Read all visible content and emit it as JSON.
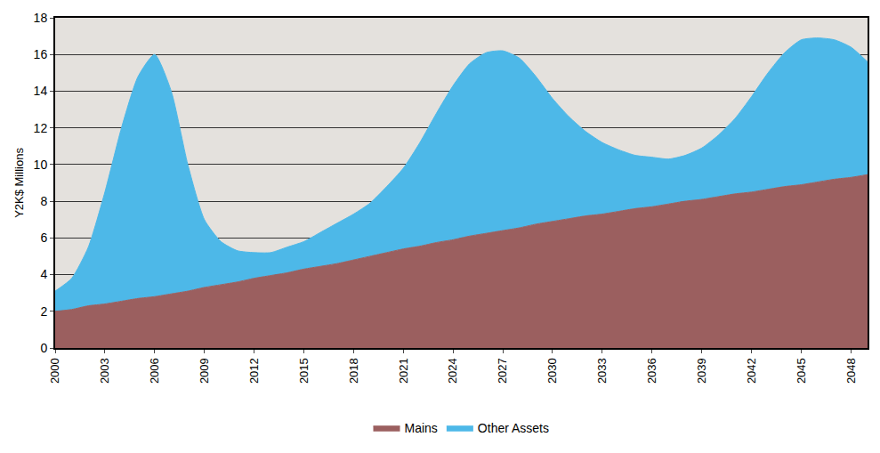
{
  "chart_data": {
    "type": "area",
    "stacked": true,
    "y_label": "Y2K$ Millions",
    "x": [
      2000,
      2001,
      2002,
      2003,
      2004,
      2005,
      2006,
      2007,
      2008,
      2009,
      2010,
      2011,
      2012,
      2013,
      2014,
      2015,
      2016,
      2017,
      2018,
      2019,
      2020,
      2021,
      2022,
      2023,
      2024,
      2025,
      2026,
      2027,
      2028,
      2029,
      2030,
      2031,
      2032,
      2033,
      2034,
      2035,
      2036,
      2037,
      2038,
      2039,
      2040,
      2041,
      2042,
      2043,
      2044,
      2045,
      2046,
      2047,
      2048,
      2049
    ],
    "series": [
      {
        "name": "Mains",
        "color": "#9b5f5f",
        "values": [
          2.0,
          2.1,
          2.3,
          2.4,
          2.55,
          2.7,
          2.8,
          2.95,
          3.1,
          3.3,
          3.45,
          3.6,
          3.8,
          3.95,
          4.1,
          4.3,
          4.45,
          4.6,
          4.8,
          5.0,
          5.2,
          5.4,
          5.55,
          5.75,
          5.9,
          6.1,
          6.25,
          6.4,
          6.55,
          6.75,
          6.9,
          7.05,
          7.2,
          7.3,
          7.45,
          7.6,
          7.7,
          7.85,
          8.0,
          8.1,
          8.25,
          8.4,
          8.5,
          8.65,
          8.8,
          8.9,
          9.05,
          9.2,
          9.3,
          9.45
        ]
      },
      {
        "name": "Other Assets",
        "color": "#4db8e8",
        "values": [
          1.1,
          1.7,
          3.2,
          6.1,
          9.45,
          12.1,
          13.2,
          11.05,
          6.9,
          3.7,
          2.35,
          1.7,
          1.4,
          1.25,
          1.4,
          1.5,
          1.85,
          2.2,
          2.5,
          2.9,
          3.6,
          4.4,
          5.65,
          7.05,
          8.4,
          9.4,
          9.85,
          9.8,
          9.25,
          8.05,
          6.7,
          5.55,
          4.6,
          3.9,
          3.35,
          2.9,
          2.7,
          2.45,
          2.5,
          2.8,
          3.35,
          4.1,
          5.2,
          6.35,
          7.3,
          7.9,
          7.85,
          7.6,
          7.1,
          6.15
        ]
      }
    ],
    "xlim": [
      2000,
      2049
    ],
    "xticks": [
      2000,
      2003,
      2006,
      2009,
      2012,
      2015,
      2018,
      2021,
      2024,
      2027,
      2030,
      2033,
      2036,
      2039,
      2042,
      2045,
      2048
    ],
    "ylim": [
      0,
      18
    ],
    "yticks": [
      0,
      2,
      4,
      6,
      8,
      10,
      12,
      14,
      16,
      18
    ],
    "grid": true,
    "legend": "bottom"
  }
}
